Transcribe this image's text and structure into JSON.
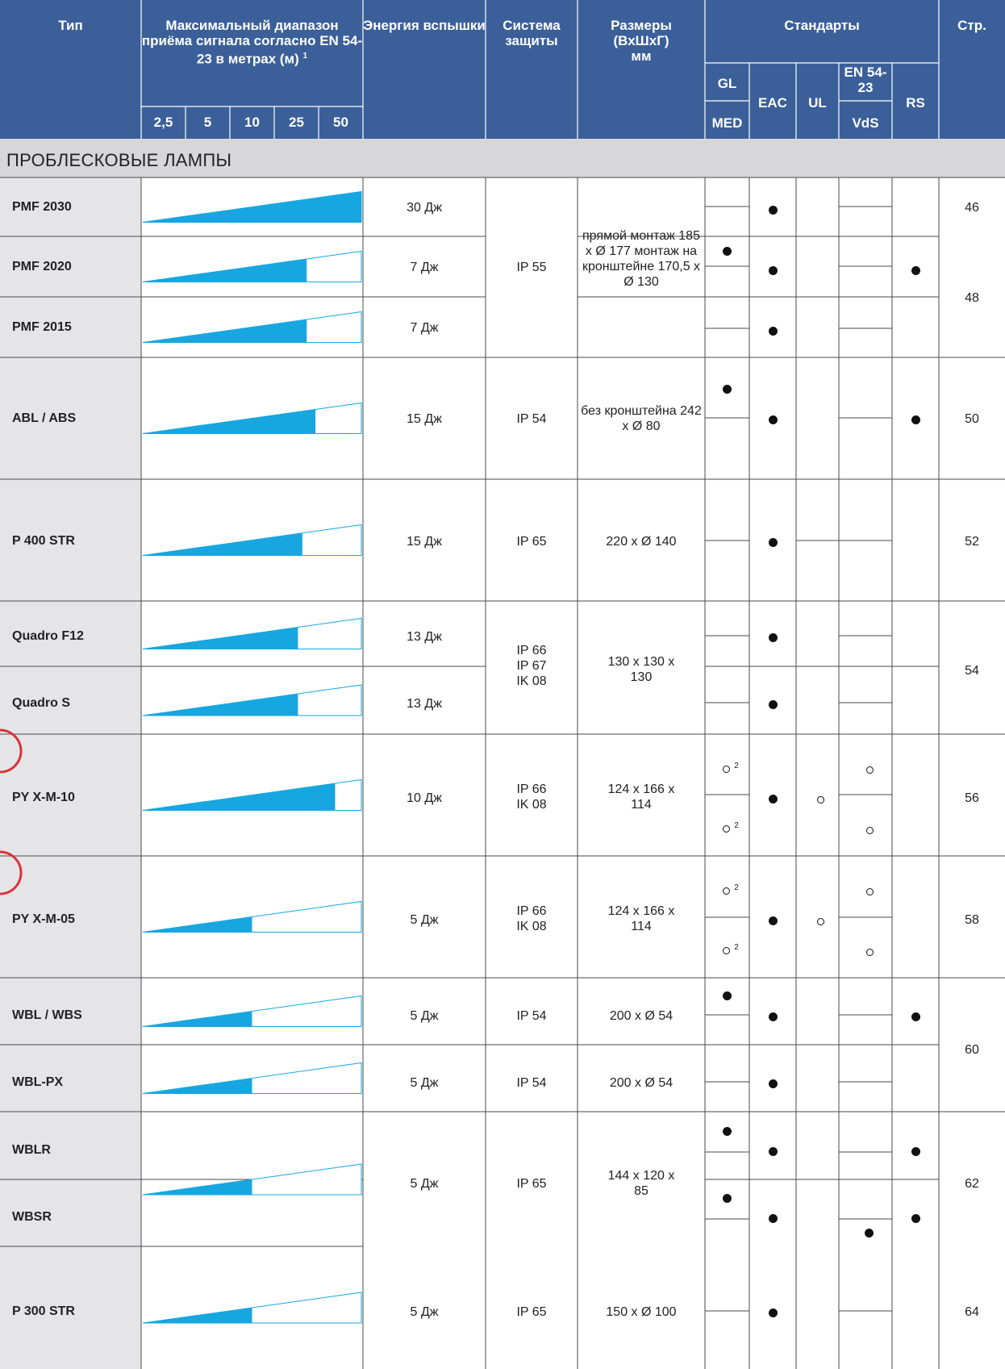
{
  "header": {
    "type": "Тип",
    "range": "Максимальный диапазон приёма сигнала согласно EN 54-23 в метрах (м)",
    "range_note": "1",
    "energy": "Энергия вспышки",
    "protection": "Система защиты",
    "dimensions_1": "Размеры",
    "dimensions_2": "(ВхШхГ)",
    "dimensions_3": "мм",
    "standards": "Стандарты",
    "page": "Стр.",
    "range_ticks": [
      "2,5",
      "5",
      "10",
      "25",
      "50"
    ],
    "std": {
      "gl": "GL",
      "med": "MED",
      "eac": "EAC",
      "ul": "UL",
      "en": "EN 54-23",
      "vds": "VdS",
      "rs": "RS"
    }
  },
  "section_title": "ПРОБЛЕСКОВЫЕ ЛАМПЫ",
  "rows": [
    {
      "name": "PMF 2030",
      "energy": "30 Дж",
      "range_fill": 1.0
    },
    {
      "name": "PMF 2020",
      "energy": "7 Дж",
      "range_fill": 0.75
    },
    {
      "name": "PMF 2015",
      "energy": "7 Дж",
      "range_fill": 0.75
    },
    {
      "name": "ABL / ABS",
      "energy": "15 Дж",
      "range_fill": 0.79
    },
    {
      "name": "P 400 STR",
      "energy": "15 Дж",
      "range_fill": 0.73
    },
    {
      "name": "Quadro F12",
      "energy": "13 Дж",
      "range_fill": 0.71
    },
    {
      "name": "Quadro S",
      "energy": "13 Дж",
      "range_fill": 0.71
    },
    {
      "name": "PY X-M-10",
      "energy": "10 Дж",
      "range_fill": 0.88
    },
    {
      "name": "PY X-M-05",
      "energy": "5 Дж",
      "range_fill": 0.5
    },
    {
      "name": "WBL / WBS",
      "energy": "5 Дж",
      "range_fill": 0.5
    },
    {
      "name": "WBL-PX",
      "energy": "5 Дж",
      "range_fill": 0.5
    },
    {
      "name": "WBLR",
      "energy": "",
      "range_fill": null
    },
    {
      "name": "WBSR",
      "energy": "",
      "range_fill": null
    },
    {
      "name": "P 300 STR",
      "energy": "5 Дж",
      "range_fill": 0.5
    }
  ],
  "merged": {
    "pmf_protection": "IP 55",
    "pmf_dimensions": "прямой монтаж 185 x Ø 177 монтаж на кронштейне 170,5 x Ø 130",
    "abl_protection": "IP 54",
    "abl_dimensions": "без кронштейна 242 x Ø 80",
    "p400_protection": "IP 65",
    "p400_dimensions": "220 x Ø 140",
    "quadro_protection": "IP 66 IP 67 IK 08",
    "quadro_dimensions": "130 x 130 x 130",
    "py10_protection": "IP 66 IK 08",
    "py10_dimensions": "124 x 166 x 114",
    "py05_protection": "IP 66 IK 08",
    "py05_dimensions": "124 x 166 x 114",
    "wbl_protection": "IP 54",
    "wbl_dimensions": "200 x Ø 54",
    "wblpx_protection": "IP 54",
    "wblpx_dimensions": "200 x Ø 54",
    "wblr_energy": "5 Дж",
    "wblr_protection": "IP 65",
    "wblr_dimensions": "144 x 120 x 85",
    "p300_protection": "IP 65",
    "p300_dimensions": "150 x Ø 100"
  },
  "pages": [
    "46",
    "48",
    "50",
    "52",
    "54",
    "56",
    "58",
    "60",
    "62",
    "64"
  ],
  "footnote_mark": "2",
  "colors": {
    "header": "#3b5f99",
    "fill": "#17a6e0",
    "name_bg": "#e5e5e8",
    "section_bg": "#d7d7da",
    "line": "#4a4a4a"
  }
}
